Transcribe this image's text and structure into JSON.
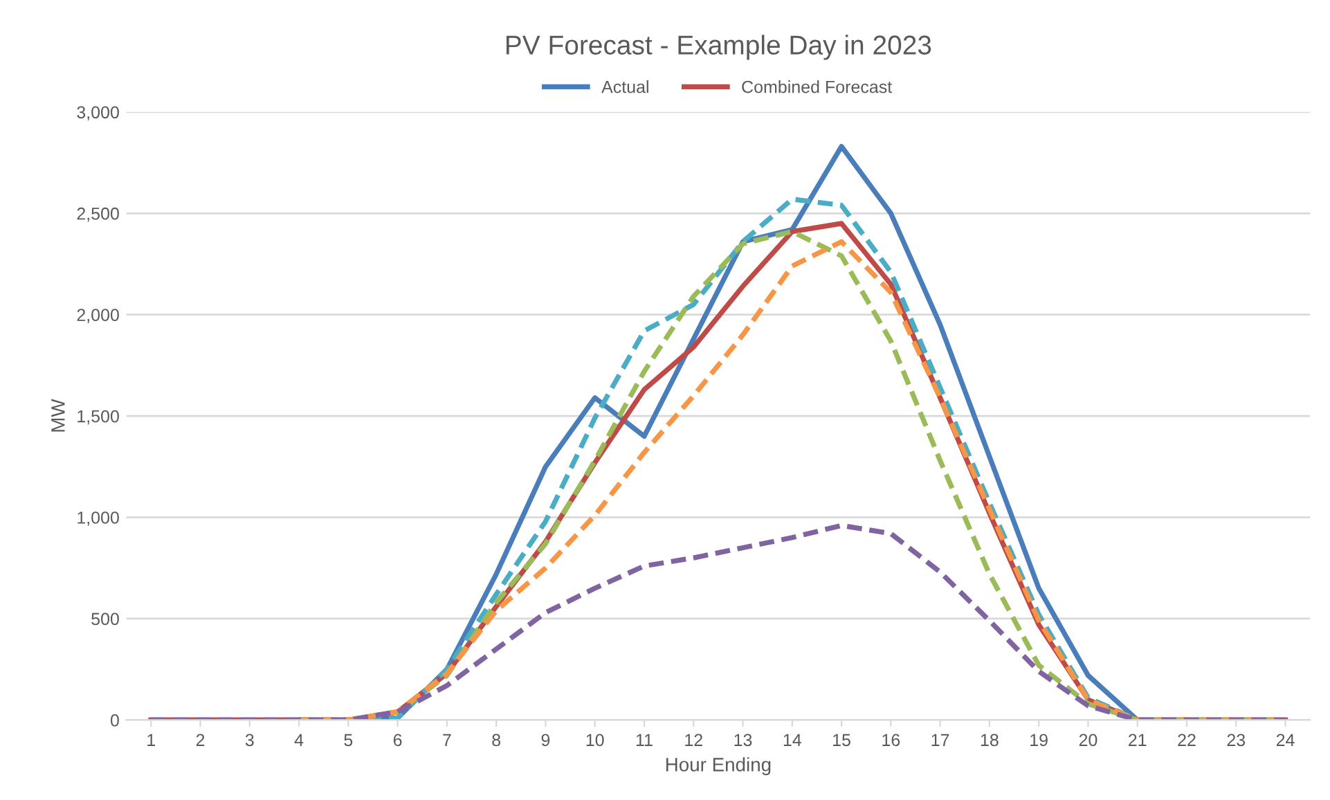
{
  "chart_data": {
    "type": "line",
    "title": "PV Forecast - Example Day in 2023",
    "xlabel": "Hour Ending",
    "ylabel": "MW",
    "categories": [
      "1",
      "2",
      "3",
      "4",
      "5",
      "6",
      "7",
      "8",
      "9",
      "10",
      "11",
      "12",
      "13",
      "14",
      "15",
      "16",
      "17",
      "18",
      "19",
      "20",
      "21",
      "22",
      "23",
      "24"
    ],
    "ylim": [
      0,
      3000
    ],
    "yticks": [
      {
        "value": 0,
        "label": "0"
      },
      {
        "value": 500,
        "label": "500"
      },
      {
        "value": 1000,
        "label": "1,000"
      },
      {
        "value": 1500,
        "label": "1,500"
      },
      {
        "value": 2000,
        "label": "2,000"
      },
      {
        "value": 2500,
        "label": "2,500"
      },
      {
        "value": 3000,
        "label": "3,000"
      }
    ],
    "grid": "y",
    "legend": "top",
    "series": [
      {
        "name": "Actual",
        "color": "#4a7ebb",
        "line_style": "solid",
        "values": [
          0,
          0,
          0,
          0,
          0,
          10,
          250,
          720,
          1250,
          1590,
          1400,
          1880,
          2360,
          2420,
          2830,
          2500,
          1950,
          1300,
          650,
          220,
          0,
          0,
          0,
          0
        ]
      },
      {
        "name": "Combined Forecast",
        "color": "#be4b48",
        "line_style": "solid",
        "values": [
          0,
          0,
          0,
          0,
          0,
          40,
          230,
          560,
          880,
          1270,
          1630,
          1840,
          2140,
          2410,
          2450,
          2150,
          1590,
          1020,
          470,
          100,
          0,
          0,
          0,
          0
        ]
      },
      {
        "color": "#4bacc6",
        "line_style": "dashed",
        "values": [
          null,
          null,
          null,
          0,
          0,
          10,
          250,
          620,
          980,
          1490,
          1920,
          2050,
          2360,
          2570,
          2540,
          2210,
          1640,
          1070,
          520,
          110,
          0,
          0,
          null,
          null
        ]
      },
      {
        "color": "#9bbb59",
        "line_style": "dashed",
        "values": [
          null,
          null,
          null,
          0,
          0,
          40,
          220,
          580,
          870,
          1280,
          1720,
          2090,
          2350,
          2410,
          2290,
          1870,
          1280,
          720,
          270,
          80,
          0,
          0,
          0,
          0
        ]
      },
      {
        "color": "#f79646",
        "line_style": "dashed",
        "values": [
          null,
          null,
          null,
          0,
          0,
          40,
          230,
          540,
          750,
          1010,
          1320,
          1600,
          1900,
          2240,
          2360,
          2110,
          1590,
          1040,
          490,
          100,
          0,
          0,
          0,
          0
        ]
      },
      {
        "color": "#8064a2",
        "line_style": "dashed",
        "values": [
          0,
          0,
          0,
          0,
          0,
          40,
          170,
          350,
          530,
          650,
          760,
          800,
          850,
          900,
          960,
          920,
          730,
          490,
          240,
          70,
          0,
          0,
          0,
          0
        ]
      }
    ]
  }
}
